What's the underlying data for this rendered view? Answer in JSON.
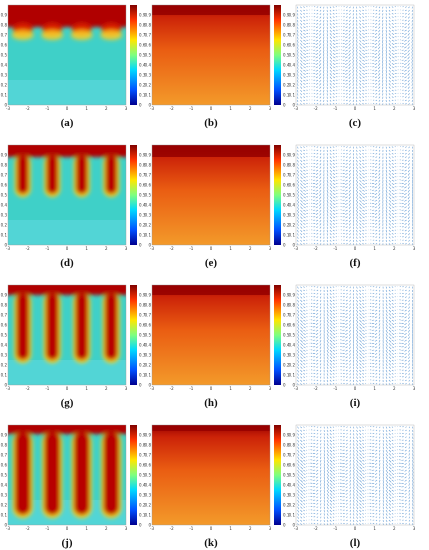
{
  "figure": {
    "rows": [
      {
        "panels": [
          {
            "label": "(a)",
            "kind": "phase"
          },
          {
            "label": "(b)",
            "kind": "temperature"
          },
          {
            "label": "(c)",
            "kind": "velocity"
          }
        ],
        "stage": 0
      },
      {
        "panels": [
          {
            "label": "(d)",
            "kind": "phase"
          },
          {
            "label": "(e)",
            "kind": "temperature"
          },
          {
            "label": "(f)",
            "kind": "velocity"
          }
        ],
        "stage": 1
      },
      {
        "panels": [
          {
            "label": "(g)",
            "kind": "phase"
          },
          {
            "label": "(h)",
            "kind": "temperature"
          },
          {
            "label": "(i)",
            "kind": "velocity"
          }
        ],
        "stage": 2
      },
      {
        "panels": [
          {
            "label": "(j)",
            "kind": "phase"
          },
          {
            "label": "(k)",
            "kind": "temperature"
          },
          {
            "label": "(l)",
            "kind": "velocity"
          }
        ],
        "stage": 3
      }
    ],
    "x_ticks": [
      "-3",
      "-2",
      "-1",
      "0",
      "1",
      "2",
      "3"
    ],
    "y_ticks": [
      "0",
      "0.1",
      "0.2",
      "0.3",
      "0.4",
      "0.5",
      "0.6",
      "0.7",
      "0.8",
      "0.9"
    ],
    "colorbar_ticks": [
      "0",
      "0.1",
      "0.2",
      "0.3",
      "0.4",
      "0.5",
      "0.6",
      "0.7",
      "0.8",
      "0.9"
    ],
    "colors": {
      "phase_cold": "#3fd0c8",
      "phase_hot": "#b00000",
      "temp_low": "#f07a14",
      "temp_high": "#b40000",
      "arrow": "#3d82c8"
    }
  }
}
